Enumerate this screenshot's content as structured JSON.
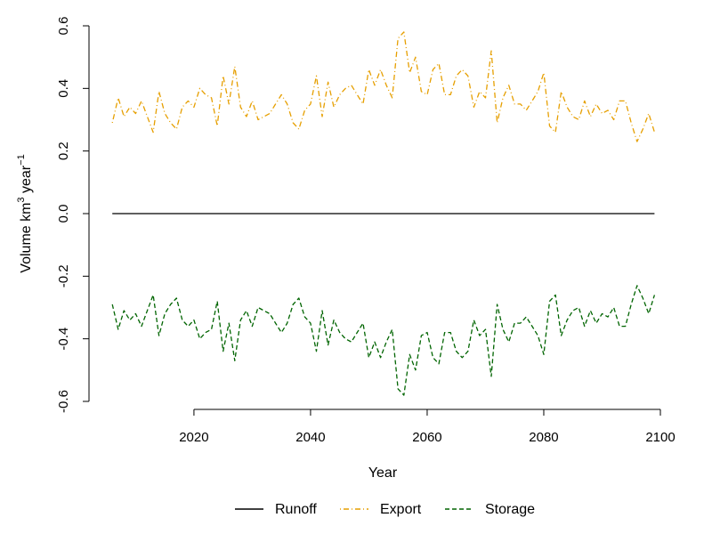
{
  "chart_data": {
    "type": "line",
    "xlabel": "Year",
    "ylabel": {
      "prefix": "Volume  km",
      "exp1": "3",
      "mid": " year",
      "exp2": "−1"
    },
    "xlim": [
      2002,
      2100
    ],
    "ylim": [
      -0.6,
      0.6
    ],
    "x_ticks": [
      2020,
      2040,
      2060,
      2080,
      2100
    ],
    "y_ticks": [
      -0.6,
      -0.4,
      -0.2,
      0.0,
      0.2,
      0.4,
      0.6
    ],
    "x_tick_labels": [
      "2020",
      "2040",
      "2060",
      "2080",
      "2100"
    ],
    "y_tick_labels": [
      "-0.6",
      "-0.4",
      "-0.2",
      "0.0",
      "0.2",
      "0.4",
      "0.6"
    ],
    "x": [
      2006,
      2007,
      2008,
      2009,
      2010,
      2011,
      2012,
      2013,
      2014,
      2015,
      2016,
      2017,
      2018,
      2019,
      2020,
      2021,
      2022,
      2023,
      2024,
      2025,
      2026,
      2027,
      2028,
      2029,
      2030,
      2031,
      2032,
      2033,
      2034,
      2035,
      2036,
      2037,
      2038,
      2039,
      2040,
      2041,
      2042,
      2043,
      2044,
      2045,
      2046,
      2047,
      2048,
      2049,
      2050,
      2051,
      2052,
      2053,
      2054,
      2055,
      2056,
      2057,
      2058,
      2059,
      2060,
      2061,
      2062,
      2063,
      2064,
      2065,
      2066,
      2067,
      2068,
      2069,
      2070,
      2071,
      2072,
      2073,
      2074,
      2075,
      2076,
      2077,
      2078,
      2079,
      2080,
      2081,
      2082,
      2083,
      2084,
      2085,
      2086,
      2087,
      2088,
      2089,
      2090,
      2091,
      2092,
      2093,
      2094,
      2095,
      2096,
      2097,
      2098,
      2099
    ],
    "series": [
      {
        "name": "Runoff",
        "color": "#000000",
        "dash": "solid",
        "values": [
          0,
          0,
          0,
          0,
          0,
          0,
          0,
          0,
          0,
          0,
          0,
          0,
          0,
          0,
          0,
          0,
          0,
          0,
          0,
          0,
          0,
          0,
          0,
          0,
          0,
          0,
          0,
          0,
          0,
          0,
          0,
          0,
          0,
          0,
          0,
          0,
          0,
          0,
          0,
          0,
          0,
          0,
          0,
          0,
          0,
          0,
          0,
          0,
          0,
          0,
          0,
          0,
          0,
          0,
          0,
          0,
          0,
          0,
          0,
          0,
          0,
          0,
          0,
          0,
          0,
          0,
          0,
          0,
          0,
          0,
          0,
          0,
          0,
          0,
          0,
          0,
          0,
          0,
          0,
          0,
          0,
          0,
          0,
          0,
          0,
          0,
          0,
          0,
          0,
          0,
          0,
          0,
          0,
          0
        ]
      },
      {
        "name": "Export",
        "color": "#E69F00",
        "dash": "dotdash",
        "values": [
          0.29,
          0.37,
          0.31,
          0.34,
          0.32,
          0.36,
          0.31,
          0.26,
          0.39,
          0.32,
          0.29,
          0.27,
          0.34,
          0.36,
          0.34,
          0.4,
          0.38,
          0.37,
          0.28,
          0.44,
          0.35,
          0.47,
          0.34,
          0.31,
          0.36,
          0.3,
          0.31,
          0.32,
          0.35,
          0.38,
          0.35,
          0.29,
          0.27,
          0.33,
          0.35,
          0.44,
          0.31,
          0.42,
          0.34,
          0.38,
          0.4,
          0.41,
          0.38,
          0.35,
          0.46,
          0.41,
          0.46,
          0.41,
          0.37,
          0.56,
          0.58,
          0.45,
          0.5,
          0.39,
          0.38,
          0.46,
          0.48,
          0.38,
          0.38,
          0.44,
          0.46,
          0.44,
          0.34,
          0.39,
          0.37,
          0.52,
          0.29,
          0.37,
          0.41,
          0.35,
          0.35,
          0.33,
          0.36,
          0.39,
          0.45,
          0.28,
          0.26,
          0.39,
          0.34,
          0.31,
          0.3,
          0.36,
          0.31,
          0.35,
          0.32,
          0.33,
          0.3,
          0.36,
          0.36,
          0.29,
          0.23,
          0.27,
          0.32,
          0.26
        ]
      },
      {
        "name": "Storage",
        "color": "#006400",
        "dash": "dashed",
        "values": [
          -0.29,
          -0.37,
          -0.31,
          -0.34,
          -0.32,
          -0.36,
          -0.31,
          -0.26,
          -0.39,
          -0.32,
          -0.29,
          -0.27,
          -0.34,
          -0.36,
          -0.34,
          -0.4,
          -0.38,
          -0.37,
          -0.28,
          -0.44,
          -0.35,
          -0.47,
          -0.34,
          -0.31,
          -0.36,
          -0.3,
          -0.31,
          -0.32,
          -0.35,
          -0.38,
          -0.35,
          -0.29,
          -0.27,
          -0.33,
          -0.35,
          -0.44,
          -0.31,
          -0.42,
          -0.34,
          -0.38,
          -0.4,
          -0.41,
          -0.38,
          -0.35,
          -0.46,
          -0.41,
          -0.46,
          -0.41,
          -0.37,
          -0.56,
          -0.58,
          -0.45,
          -0.5,
          -0.39,
          -0.38,
          -0.46,
          -0.48,
          -0.38,
          -0.38,
          -0.44,
          -0.46,
          -0.44,
          -0.34,
          -0.39,
          -0.37,
          -0.52,
          -0.29,
          -0.37,
          -0.41,
          -0.35,
          -0.35,
          -0.33,
          -0.36,
          -0.39,
          -0.45,
          -0.28,
          -0.26,
          -0.39,
          -0.34,
          -0.31,
          -0.3,
          -0.36,
          -0.31,
          -0.35,
          -0.32,
          -0.33,
          -0.3,
          -0.36,
          -0.36,
          -0.29,
          -0.23,
          -0.27,
          -0.32,
          -0.26
        ]
      }
    ],
    "legend": [
      "Runoff",
      "Export",
      "Storage"
    ],
    "legend_position": "bottom"
  }
}
